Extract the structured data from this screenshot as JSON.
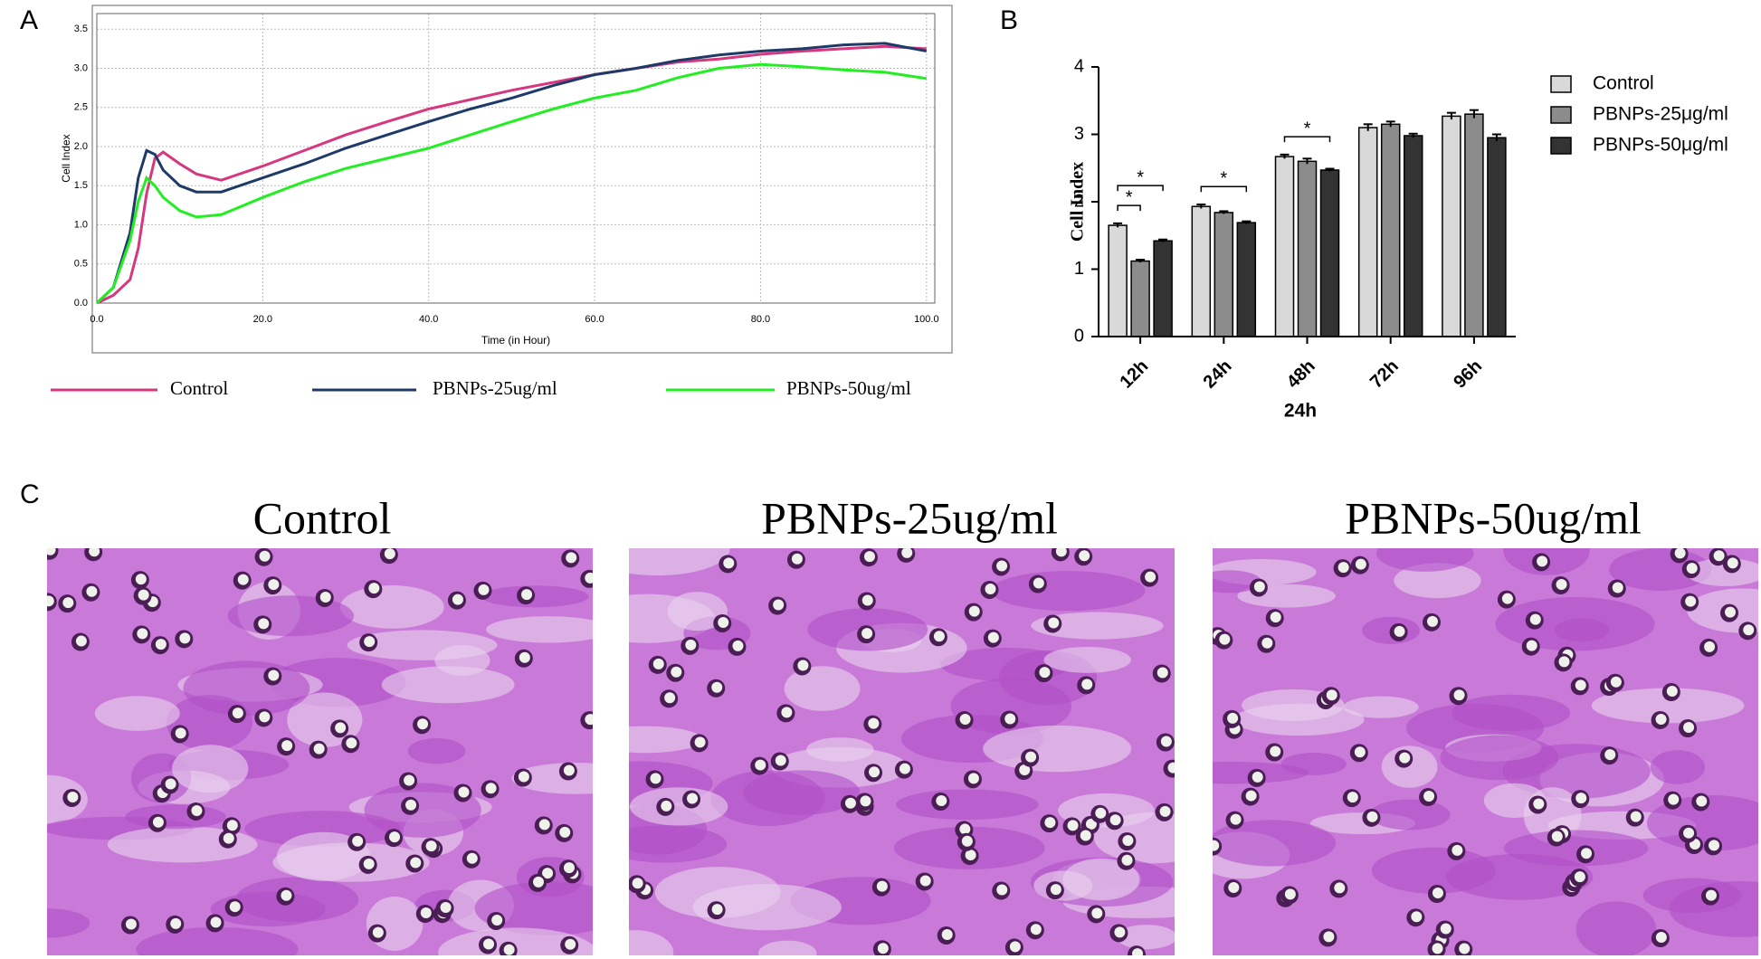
{
  "panels": [
    "A",
    "B",
    "C"
  ],
  "micrographs": {
    "titles": [
      "Control",
      "PBNPs-25ug/ml",
      "PBNPs-50ug/ml"
    ]
  },
  "chart_data": [
    {
      "type": "line",
      "xlabel": "Time (in Hour)",
      "ylabel": "Cell Index",
      "x": [
        0,
        2,
        4,
        5,
        6,
        7,
        8,
        10,
        12,
        15,
        20,
        25,
        30,
        35,
        40,
        45,
        50,
        55,
        60,
        65,
        70,
        75,
        80,
        85,
        90,
        95,
        100
      ],
      "series": [
        {
          "name": "Control",
          "color": "#d6377f",
          "values": [
            0,
            0.1,
            0.3,
            0.7,
            1.4,
            1.85,
            1.93,
            1.78,
            1.65,
            1.57,
            1.75,
            1.95,
            2.15,
            2.32,
            2.48,
            2.6,
            2.72,
            2.82,
            2.92,
            3.0,
            3.08,
            3.12,
            3.18,
            3.22,
            3.25,
            3.28,
            3.25
          ]
        },
        {
          "name": "PBNPs-25ug/ml",
          "color": "#1f3a68",
          "values": [
            0,
            0.2,
            0.9,
            1.6,
            1.95,
            1.9,
            1.7,
            1.5,
            1.42,
            1.42,
            1.6,
            1.78,
            1.98,
            2.15,
            2.32,
            2.48,
            2.62,
            2.78,
            2.92,
            3.0,
            3.1,
            3.17,
            3.22,
            3.25,
            3.3,
            3.32,
            3.22
          ]
        },
        {
          "name": "PBNPs-50ug/ml",
          "color": "#22ee22",
          "values": [
            0,
            0.2,
            0.8,
            1.3,
            1.6,
            1.5,
            1.35,
            1.18,
            1.1,
            1.13,
            1.35,
            1.55,
            1.72,
            1.85,
            1.98,
            2.15,
            2.32,
            2.48,
            2.62,
            2.72,
            2.88,
            3.0,
            3.05,
            3.02,
            2.98,
            2.95,
            2.87
          ]
        }
      ],
      "xlim": [
        0,
        101
      ],
      "ylim": [
        0,
        3.7
      ],
      "xticks": [
        {
          "value": 0,
          "label": "0.0"
        },
        {
          "value": 20,
          "label": "20.0"
        },
        {
          "value": 40,
          "label": "40.0"
        },
        {
          "value": 60,
          "label": "60.0"
        },
        {
          "value": 80,
          "label": "80.0"
        },
        {
          "value": 100,
          "label": "100.0"
        }
      ],
      "yticks": [
        {
          "value": 0,
          "label": "0.0"
        },
        {
          "value": 0.5,
          "label": "0.5"
        },
        {
          "value": 1,
          "label": "1.0"
        },
        {
          "value": 1.5,
          "label": "1.5"
        },
        {
          "value": 2,
          "label": "2.0"
        },
        {
          "value": 2.5,
          "label": "2.5"
        },
        {
          "value": 3,
          "label": "3.0"
        },
        {
          "value": 3.5,
          "label": "3.5"
        }
      ],
      "grid": true,
      "legend": "bottom"
    },
    {
      "type": "bar",
      "xlabel": "24h",
      "ylabel": "Cell Index",
      "categories": [
        "12h",
        "24h",
        "48h",
        "72h",
        "96h"
      ],
      "series": [
        {
          "name": "Control",
          "color": "#d9d9d9",
          "values": [
            1.65,
            1.93,
            2.67,
            3.1,
            3.27
          ],
          "errors": [
            0.03,
            0.03,
            0.03,
            0.05,
            0.05
          ]
        },
        {
          "name": "PBNPs-25μg/ml",
          "color": "#8c8c8c",
          "values": [
            1.12,
            1.84,
            2.6,
            3.15,
            3.3
          ],
          "errors": [
            0.02,
            0.02,
            0.04,
            0.04,
            0.06
          ]
        },
        {
          "name": "PBNPs-50μg/ml",
          "color": "#333333",
          "values": [
            1.42,
            1.69,
            2.47,
            2.98,
            2.95
          ],
          "errors": [
            0.02,
            0.02,
            0.02,
            0.03,
            0.05
          ]
        }
      ],
      "annotations": [
        {
          "label": "*",
          "category": 0,
          "series": [
            0,
            1
          ]
        },
        {
          "label": "*",
          "category": 0,
          "series": [
            0,
            2
          ]
        },
        {
          "label": "*",
          "category": 1,
          "series": [
            0,
            2
          ]
        },
        {
          "label": "*",
          "category": 2,
          "series": [
            0,
            2
          ]
        }
      ],
      "ylim": [
        0,
        4
      ],
      "yticks": [
        0,
        1,
        2,
        3,
        4
      ],
      "grid": false,
      "legend": "right"
    }
  ]
}
